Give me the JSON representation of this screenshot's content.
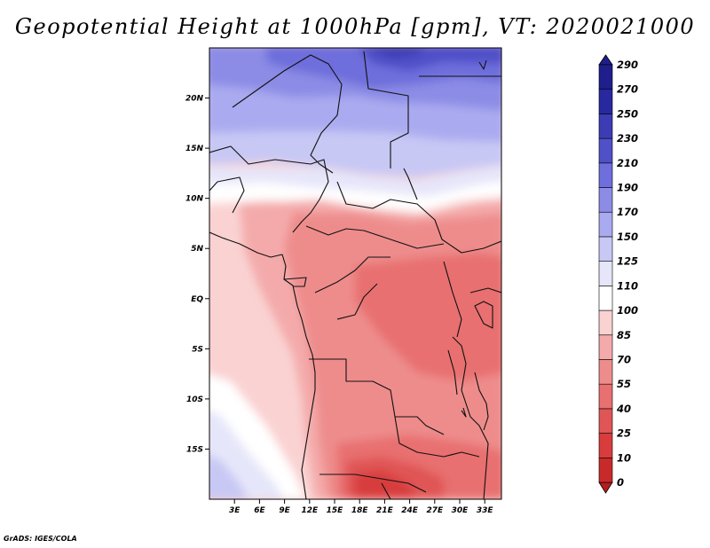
{
  "title": "Geopotential Height at 1000hPa [gpm], VT: 2020021000",
  "credit": "GrADS: IGES/COLA",
  "map": {
    "projection": "lat-lon",
    "lon_range": [
      0,
      35
    ],
    "lat_range": [
      -20,
      25
    ],
    "lat_ticks": [
      {
        "value": 20,
        "label": "20N"
      },
      {
        "value": 15,
        "label": "15N"
      },
      {
        "value": 10,
        "label": "10N"
      },
      {
        "value": 5,
        "label": "5N"
      },
      {
        "value": 0,
        "label": "EQ"
      },
      {
        "value": -5,
        "label": "5S"
      },
      {
        "value": -10,
        "label": "10S"
      },
      {
        "value": -15,
        "label": "15S"
      }
    ],
    "lon_ticks": [
      {
        "value": 3,
        "label": "3E"
      },
      {
        "value": 6,
        "label": "6E"
      },
      {
        "value": 9,
        "label": "9E"
      },
      {
        "value": 12,
        "label": "12E"
      },
      {
        "value": 15,
        "label": "15E"
      },
      {
        "value": 18,
        "label": "18E"
      },
      {
        "value": 21,
        "label": "21E"
      },
      {
        "value": 24,
        "label": "24E"
      },
      {
        "value": 27,
        "label": "27E"
      },
      {
        "value": 30,
        "label": "30E"
      },
      {
        "value": 33,
        "label": "33E"
      }
    ]
  },
  "colorbar": {
    "orientation": "vertical",
    "position": "right",
    "levels": [
      {
        "label": "0",
        "color": "#b41e1e"
      },
      {
        "label": "10",
        "color": "#c82a2a"
      },
      {
        "label": "25",
        "color": "#d83c3c"
      },
      {
        "label": "40",
        "color": "#e05555"
      },
      {
        "label": "55",
        "color": "#e87070"
      },
      {
        "label": "70",
        "color": "#ee8c8c"
      },
      {
        "label": "85",
        "color": "#f4aaaa"
      },
      {
        "label": "100",
        "color": "#fad2d2"
      },
      {
        "label": "110",
        "color": "#ffffff"
      },
      {
        "label": "125",
        "color": "#e6e6fa"
      },
      {
        "label": "150",
        "color": "#c8c8f5"
      },
      {
        "label": "170",
        "color": "#aaaaf0"
      },
      {
        "label": "190",
        "color": "#8c8ce6"
      },
      {
        "label": "210",
        "color": "#6e6edc"
      },
      {
        "label": "230",
        "color": "#5050c8"
      },
      {
        "label": "250",
        "color": "#3c3cb4"
      },
      {
        "label": "270",
        "color": "#2828a0"
      },
      {
        "label": "290",
        "color": "#1e1e8c"
      }
    ]
  }
}
